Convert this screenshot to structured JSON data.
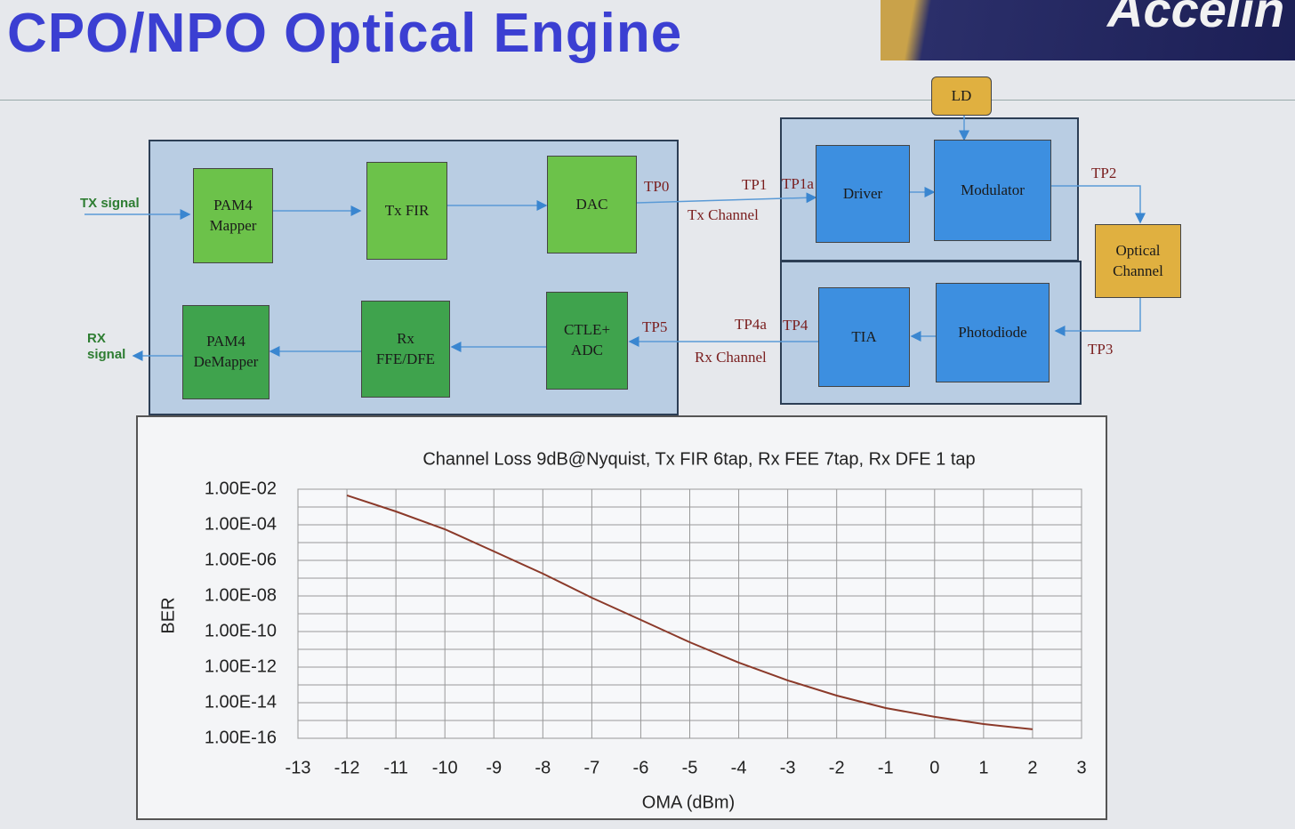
{
  "header": {
    "title": "CPO/NPO Optical Engine",
    "logo": "Accelin"
  },
  "diagram": {
    "nodes": [
      {
        "label": [
          "PAM4",
          "Mapper"
        ]
      },
      {
        "label": [
          "Tx FIR"
        ]
      },
      {
        "label": [
          "DAC"
        ]
      },
      {
        "label": [
          "PAM4",
          "DeMapper"
        ]
      },
      {
        "label": [
          "Rx",
          "FFE/DFE"
        ]
      },
      {
        "label": [
          "CTLE+",
          "ADC"
        ]
      },
      {
        "label": [
          "Driver"
        ]
      },
      {
        "label": [
          "Modulator"
        ]
      },
      {
        "label": [
          "TIA"
        ]
      },
      {
        "label": [
          "Photodiode"
        ]
      },
      {
        "label": [
          "LD"
        ]
      },
      {
        "label": [
          "Optical",
          "Channel"
        ]
      }
    ],
    "labels": [
      {
        "text": [
          "TX signal"
        ]
      },
      {
        "text": [
          "RX",
          "signal"
        ]
      },
      {
        "text": [
          "TP0"
        ]
      },
      {
        "text": [
          "TP1"
        ]
      },
      {
        "text": [
          "TP1a"
        ]
      },
      {
        "text": [
          "Tx Channel"
        ]
      },
      {
        "text": [
          "TP2"
        ]
      },
      {
        "text": [
          "TP3"
        ]
      },
      {
        "text": [
          "TP5"
        ]
      },
      {
        "text": [
          "TP4a"
        ]
      },
      {
        "text": [
          "TP4"
        ]
      },
      {
        "text": [
          "Rx Channel"
        ]
      }
    ]
  },
  "chart_data": {
    "type": "line",
    "title": "Channel Loss 9dB@Nyquist, Tx FIR 6tap, Rx FEE 7tap, Rx DFE 1 tap",
    "x_label": "OMA (dBm)",
    "y_label": "BER",
    "x": [
      -12,
      -11,
      -10,
      -9,
      -8,
      -7,
      -6,
      -5,
      -4,
      -3,
      -2,
      -1,
      0,
      1,
      2
    ],
    "values": [
      0.0045,
      0.00056,
      5.6e-05,
      3.2e-06,
      1.8e-07,
      7.9e-09,
      4.5e-10,
      2.5e-11,
      1.8e-12,
      1.8e-13,
      2.5e-14,
      5e-15,
      1.6e-15,
      6.3e-16,
      3.2e-16
    ],
    "color": "#8b3a2a",
    "xlim": [
      -13,
      3
    ],
    "xticks": [
      -13,
      -12,
      -11,
      -10,
      -9,
      -8,
      -7,
      -6,
      -5,
      -4,
      -3,
      -2,
      -1,
      0,
      1,
      2,
      3
    ],
    "ylim": [
      1e-16,
      0.01
    ],
    "yscale": "log",
    "yticks": [
      {
        "value": 1e-16,
        "label": "1.00E-16"
      },
      {
        "value": 1e-14,
        "label": "1.00E-14"
      },
      {
        "value": 1e-12,
        "label": "1.00E-12"
      },
      {
        "value": 1e-10,
        "label": "1.00E-10"
      },
      {
        "value": 1e-08,
        "label": "1.00E-08"
      },
      {
        "value": 1e-06,
        "label": "1.00E-06"
      },
      {
        "value": 0.0001,
        "label": "1.00E-04"
      },
      {
        "value": 0.01,
        "label": "1.00E-02"
      }
    ],
    "grid": true
  }
}
